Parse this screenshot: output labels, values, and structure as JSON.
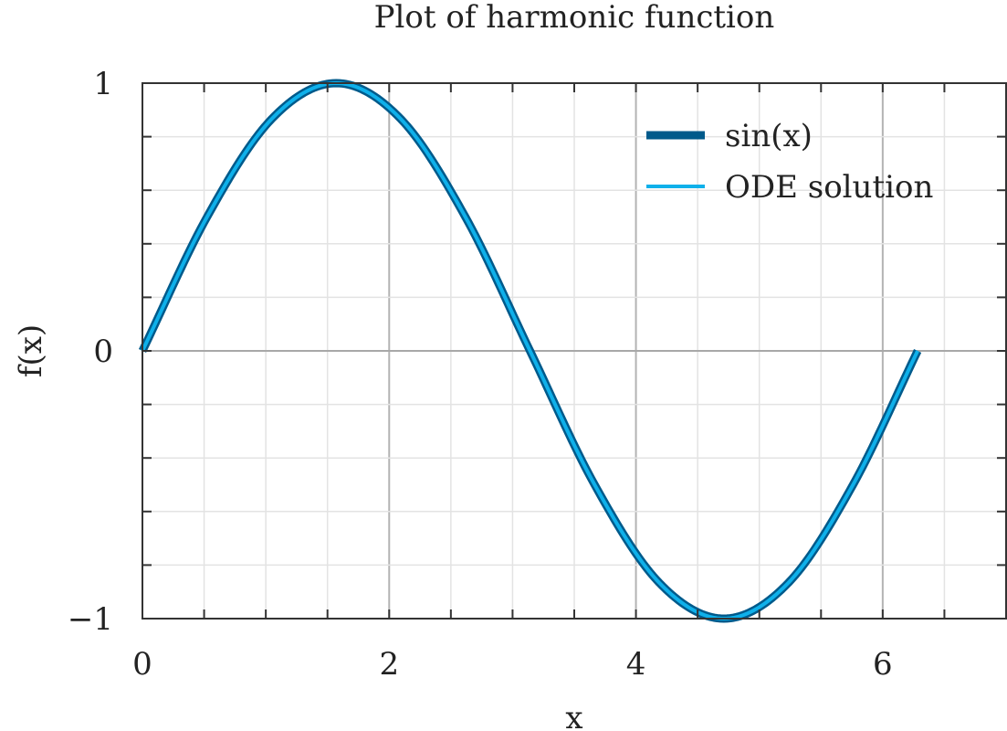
{
  "chart_data": {
    "type": "line",
    "title": "Plot of harmonic function",
    "xlabel": "x",
    "ylabel": "f(x)",
    "xlim": [
      0,
      7
    ],
    "ylim": [
      -1,
      1
    ],
    "x_ticks": [
      0,
      2,
      4,
      6
    ],
    "x_tick_labels": [
      "0",
      "2",
      "4",
      "6"
    ],
    "y_ticks": [
      -1,
      0,
      1
    ],
    "y_tick_labels": [
      "−1",
      "0",
      "1"
    ],
    "x_minor_step": 0.5,
    "y_minor_step": 0.2,
    "grid": true,
    "legend_position": "top-right",
    "series": [
      {
        "name": "sin(x)",
        "color": "#005a8b",
        "x": [
          0,
          0.5236,
          1.0472,
          1.5708,
          2.0944,
          2.618,
          3.1416,
          3.6652,
          4.1888,
          4.7124,
          5.236,
          5.7596,
          6.2832
        ],
        "y": [
          0,
          0.5,
          0.866,
          1,
          0.866,
          0.5,
          0,
          -0.5,
          -0.866,
          -1,
          -0.866,
          -0.5,
          0
        ]
      },
      {
        "name": "ODE solution",
        "color": "#0fb0ea",
        "x": [
          0,
          0.5236,
          1.0472,
          1.5708,
          2.0944,
          2.618,
          3.1416,
          3.6652,
          4.1888,
          4.7124,
          5.236,
          5.7596,
          6.2832
        ],
        "y": [
          0,
          0.5,
          0.866,
          1,
          0.866,
          0.5,
          0,
          -0.5,
          -0.866,
          -1,
          -0.866,
          -0.5,
          0
        ]
      }
    ]
  }
}
